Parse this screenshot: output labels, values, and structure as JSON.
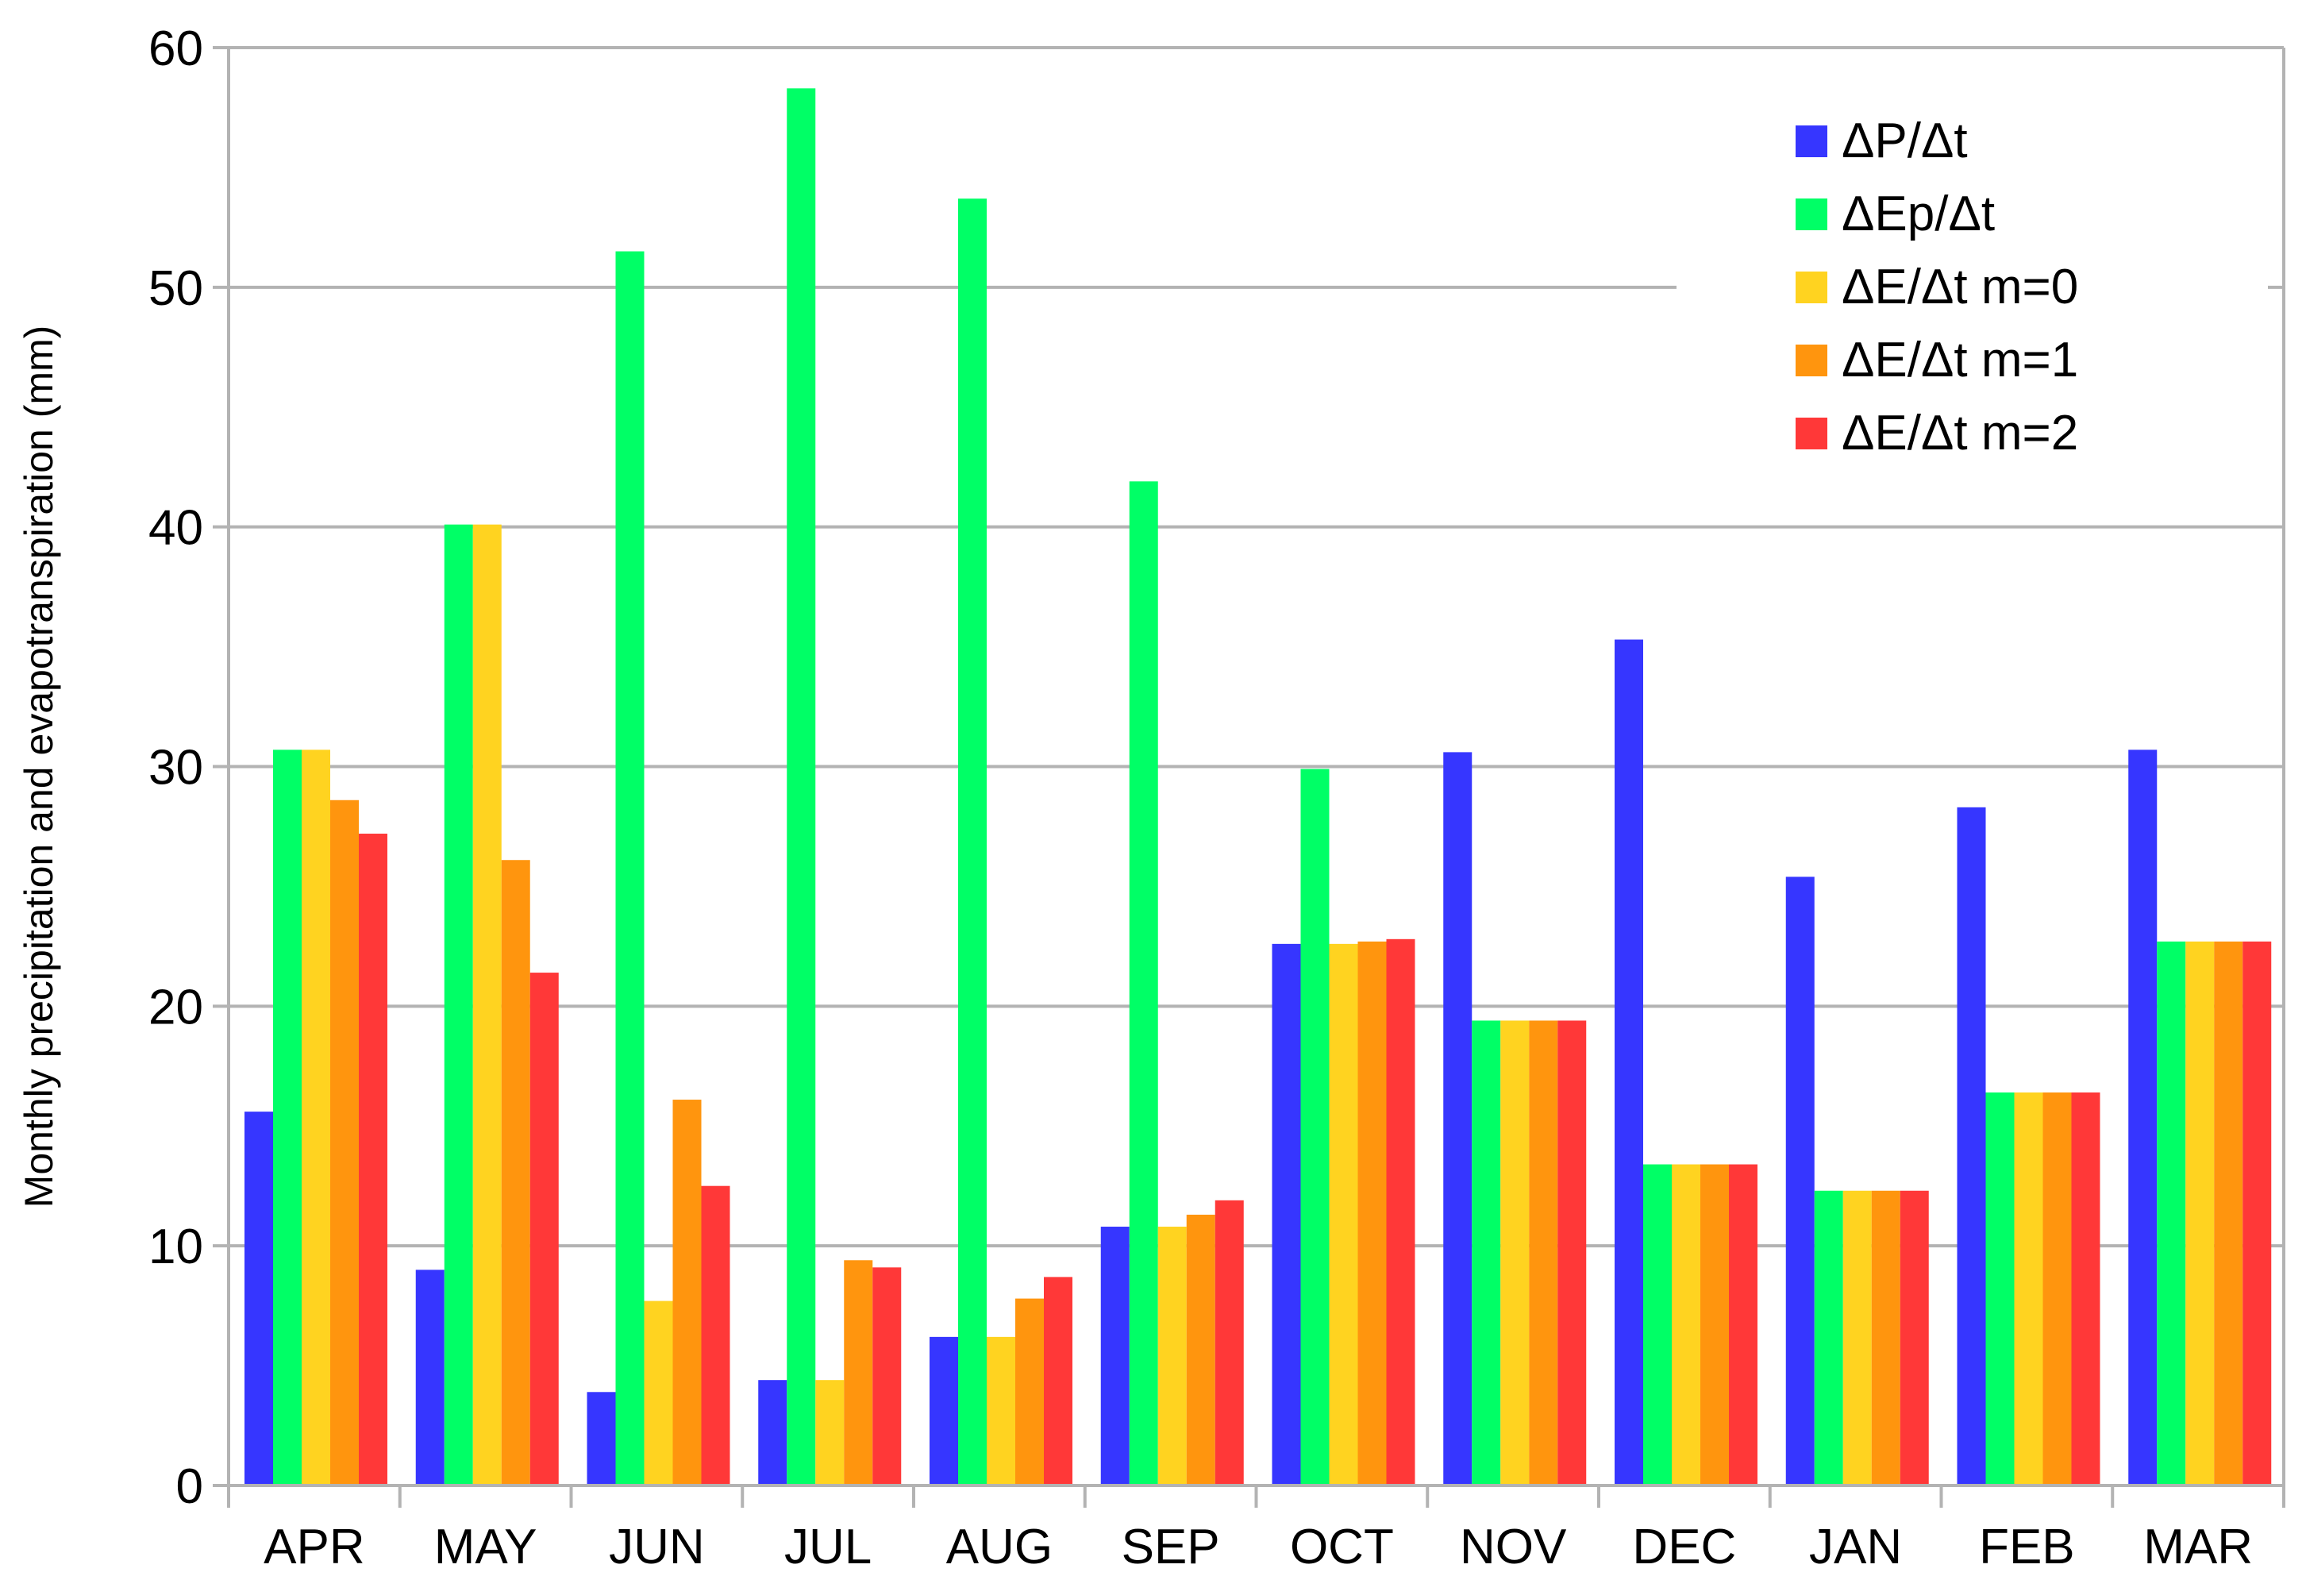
{
  "chart_data": {
    "type": "bar",
    "title": "",
    "xlabel": "",
    "ylabel": "Monthly precipitation and evapotranspiration (mm)",
    "ylim": [
      0,
      60
    ],
    "yticks": [
      0,
      10,
      20,
      30,
      40,
      50,
      60
    ],
    "grid": true,
    "legend_position": "top-right",
    "categories": [
      "APR",
      "MAY",
      "JUN",
      "JUL",
      "AUG",
      "SEP",
      "OCT",
      "NOV",
      "DEC",
      "JAN",
      "FEB",
      "MAR"
    ],
    "series": [
      {
        "name": "ΔP/Δt",
        "color": "#3636ff",
        "values": [
          15.6,
          9.0,
          3.9,
          4.4,
          6.2,
          10.8,
          22.6,
          30.6,
          35.3,
          25.4,
          28.3,
          30.7
        ]
      },
      {
        "name": "ΔEp/Δt",
        "color": "#00ff66",
        "values": [
          30.7,
          40.1,
          51.5,
          58.3,
          53.7,
          41.9,
          29.9,
          19.4,
          13.4,
          12.3,
          16.4,
          22.7
        ]
      },
      {
        "name": "ΔE/Δt m=0",
        "color": "#ffd320",
        "values": [
          30.7,
          40.1,
          7.7,
          4.4,
          6.2,
          10.8,
          22.6,
          19.4,
          13.4,
          12.3,
          16.4,
          22.7
        ]
      },
      {
        "name": "ΔE/Δt m=1",
        "color": "#ff950e",
        "values": [
          28.6,
          26.1,
          16.1,
          9.4,
          7.8,
          11.3,
          22.7,
          19.4,
          13.4,
          12.3,
          16.4,
          22.7
        ]
      },
      {
        "name": "ΔE/Δt m=2",
        "color": "#ff3838",
        "values": [
          27.2,
          21.4,
          12.5,
          9.1,
          8.7,
          11.9,
          22.8,
          19.4,
          13.4,
          12.3,
          16.4,
          22.7
        ]
      }
    ]
  }
}
